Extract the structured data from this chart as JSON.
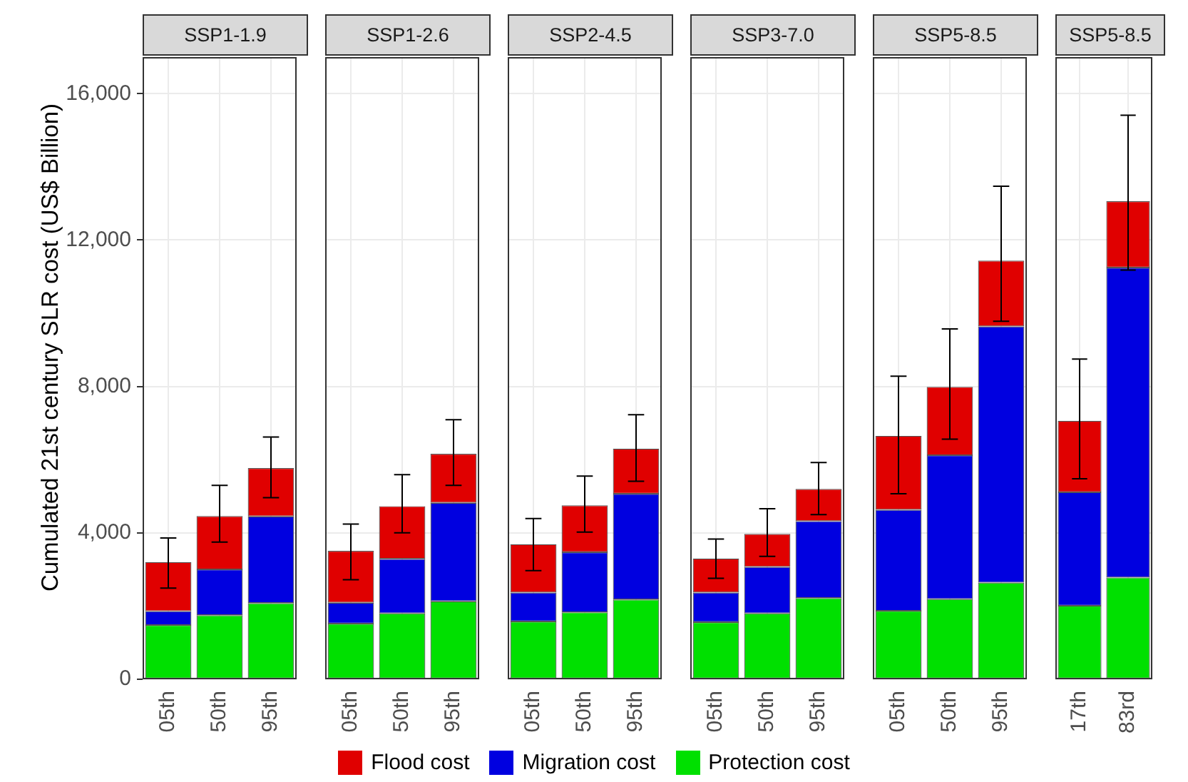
{
  "chart_data": [
    {
      "type": "bar",
      "title": "SSP1-1.9",
      "ylabel": "Cumulated 21st century SLR cost (US$ Billion)",
      "categories": [
        "05th",
        "50th",
        "95th"
      ],
      "stacked": true,
      "legend": "bottom",
      "grid": true,
      "ylim": [
        0,
        17000
      ],
      "yticks": [
        0,
        {
          "value": 4000,
          "label": "4,000"
        },
        {
          "value": 8000,
          "label": "8,000"
        },
        {
          "value": 12000,
          "label": "12,000"
        },
        {
          "value": 16000,
          "label": "16,000"
        }
      ],
      "series": [
        {
          "name": "Protection cost",
          "color": "#00e000",
          "values": [
            1480,
            1750,
            2080
          ]
        },
        {
          "name": "Migration cost",
          "color": "#0000e0",
          "values": [
            380,
            1250,
            2370
          ]
        },
        {
          "name": "Flood cost",
          "color": "#e00000",
          "values": [
            1340,
            1460,
            1320
          ],
          "errors": [
            [
              2490,
              3860
            ],
            [
              3750,
              5300
            ],
            [
              4960,
              6620
            ]
          ]
        }
      ]
    },
    {
      "type": "bar",
      "title": "SSP1-2.6",
      "categories": [
        "05th",
        "50th",
        "95th"
      ],
      "stacked": true,
      "grid": true,
      "tick_labels": "x",
      "ylim": [
        0,
        17000
      ],
      "yticks": [
        {
          "value": 0,
          "label": null
        },
        {
          "value": 4000,
          "label": null
        },
        {
          "value": 8000,
          "label": null
        },
        {
          "value": 12000,
          "label": null
        },
        {
          "value": 16000,
          "label": null
        }
      ],
      "series": [
        {
          "color": "#00e000",
          "values": [
            1520,
            1800,
            2130
          ]
        },
        {
          "color": "#0000e0",
          "values": [
            570,
            1490,
            2690
          ]
        },
        {
          "color": "#e00000",
          "values": [
            1420,
            1440,
            1340
          ],
          "errors": [
            [
              2720,
              4240
            ],
            [
              4000,
              5590
            ],
            [
              5300,
              7090
            ]
          ]
        }
      ]
    },
    {
      "type": "bar",
      "title": "SSP2-4.5",
      "categories": [
        "05th",
        "50th",
        "95th"
      ],
      "stacked": true,
      "grid": true,
      "tick_labels": "x",
      "ylim": [
        0,
        17000
      ],
      "yticks": [
        {
          "value": 0,
          "label": null
        },
        {
          "value": 4000,
          "label": null
        },
        {
          "value": 8000,
          "label": null
        },
        {
          "value": 12000,
          "label": null
        },
        {
          "value": 16000,
          "label": null
        }
      ],
      "series": [
        {
          "color": "#00e000",
          "values": [
            1580,
            1830,
            2180
          ]
        },
        {
          "color": "#0000e0",
          "values": [
            790,
            1640,
            2890
          ]
        },
        {
          "color": "#e00000",
          "values": [
            1320,
            1280,
            1230
          ],
          "errors": [
            [
              2970,
              4390
            ],
            [
              4020,
              5550
            ],
            [
              5410,
              7230
            ]
          ]
        }
      ]
    },
    {
      "type": "bar",
      "title": "SSP3-7.0",
      "categories": [
        "05th",
        "50th",
        "95th"
      ],
      "stacked": true,
      "grid": true,
      "tick_labels": "x",
      "ylim": [
        0,
        17000
      ],
      "yticks": [
        {
          "value": 0,
          "label": null
        },
        {
          "value": 4000,
          "label": null
        },
        {
          "value": 8000,
          "label": null
        },
        {
          "value": 12000,
          "label": null
        },
        {
          "value": 16000,
          "label": null
        }
      ],
      "series": [
        {
          "color": "#00e000",
          "values": [
            1560,
            1800,
            2220
          ]
        },
        {
          "color": "#0000e0",
          "values": [
            810,
            1270,
            2100
          ]
        },
        {
          "color": "#e00000",
          "values": [
            930,
            900,
            880
          ],
          "errors": [
            [
              2760,
              3830
            ],
            [
              3360,
              4660
            ],
            [
              4500,
              5920
            ]
          ]
        }
      ]
    },
    {
      "type": "bar",
      "title": "SSP5-8.5",
      "categories": [
        "05th",
        "50th",
        "95th"
      ],
      "stacked": true,
      "grid": true,
      "tick_labels": "x",
      "ylim": [
        0,
        17000
      ],
      "yticks": [
        {
          "value": 0,
          "label": null
        },
        {
          "value": 4000,
          "label": null
        },
        {
          "value": 8000,
          "label": null
        },
        {
          "value": 12000,
          "label": null
        },
        {
          "value": 16000,
          "label": null
        }
      ],
      "series": [
        {
          "color": "#00e000",
          "values": [
            1870,
            2190,
            2640
          ]
        },
        {
          "color": "#0000e0",
          "values": [
            2760,
            3930,
            7000
          ]
        },
        {
          "color": "#e00000",
          "values": [
            2020,
            1870,
            1800
          ],
          "errors": [
            [
              5070,
              8280
            ],
            [
              6560,
              9570
            ],
            [
              9780,
              13470
            ]
          ]
        }
      ]
    },
    {
      "type": "bar",
      "title": "SSP5-8.5",
      "categories": [
        "17th",
        "83rd"
      ],
      "stacked": true,
      "grid": true,
      "tick_labels": "x",
      "ylim": [
        0,
        17000
      ],
      "yticks": [
        {
          "value": 0,
          "label": null
        },
        {
          "value": 4000,
          "label": null
        },
        {
          "value": 8000,
          "label": null
        },
        {
          "value": 12000,
          "label": null
        },
        {
          "value": 16000,
          "label": null
        }
      ],
      "series": [
        {
          "color": "#00e000",
          "values": [
            2010,
            2780
          ]
        },
        {
          "color": "#0000e0",
          "values": [
            3100,
            8470
          ]
        },
        {
          "color": "#e00000",
          "values": [
            1950,
            1810
          ],
          "errors": [
            [
              5480,
              8750
            ],
            [
              11180,
              15410
            ]
          ]
        }
      ]
    }
  ]
}
